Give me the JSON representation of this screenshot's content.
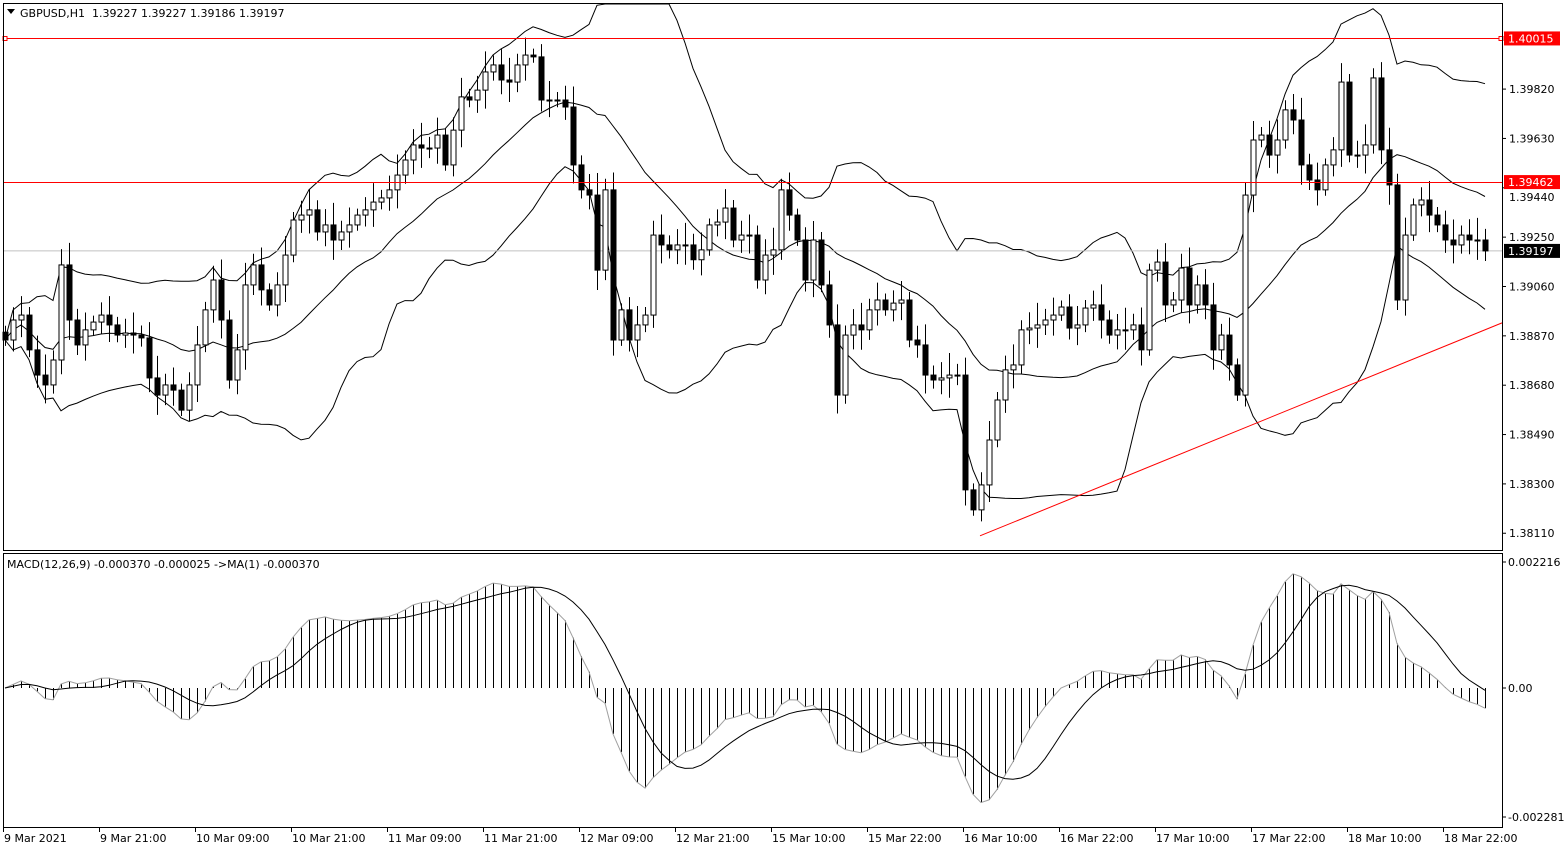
{
  "header": {
    "symbol": "GBPUSD,H1",
    "ohlc": "1.39227 1.39227 1.39186 1.39197",
    "menu_icon": "triangle-down-icon"
  },
  "macd_label": "MACD(12,26,9) -0.000370 -0.000025  ->MA(1) -0.000370",
  "colors": {
    "hline": "#ff0000",
    "trendline": "#ff0000",
    "bid_line": "#c0c0c0",
    "bull": "#ffffff",
    "bear": "#000000"
  },
  "chart_data": [
    {
      "type": "candlestick",
      "title": "GBPUSD,H1",
      "indicators": [
        {
          "name": "Bollinger Bands",
          "period": 20,
          "deviation": 2
        }
      ],
      "y_ticks": [
        "1.39820",
        "1.39630",
        "1.39440",
        "1.39250",
        "1.39060",
        "1.38870",
        "1.38680",
        "1.38490",
        "1.38300",
        "1.38110"
      ],
      "ylim": [
        1.38,
        1.4016
      ],
      "x_ticks": [
        "9 Mar 2021",
        "9 Mar 21:00",
        "10 Mar 09:00",
        "10 Mar 21:00",
        "11 Mar 09:00",
        "11 Mar 21:00",
        "12 Mar 09:00",
        "12 Mar 21:00",
        "15 Mar 10:00",
        "15 Mar 22:00",
        "16 Mar 10:00",
        "16 Mar 22:00",
        "17 Mar 10:00",
        "17 Mar 22:00",
        "18 Mar 10:00",
        "18 Mar 22:00"
      ],
      "horizontal_lines": [
        {
          "price": "1.40015"
        },
        {
          "price": "1.39462"
        }
      ],
      "current_price": "1.39197",
      "trendline": {
        "from": {
          "time": "16 Mar 12:00",
          "price": 1.381
        },
        "to": {
          "time": "19 Mar 02:00",
          "price": 1.3892
        }
      },
      "close": [
        1.38854,
        1.38931,
        1.3895,
        1.38816,
        1.38719,
        1.38681,
        1.38777,
        1.39143,
        1.38931,
        1.38835,
        1.38893,
        1.38923,
        1.3895,
        1.38912,
        1.38873,
        1.38881,
        1.38873,
        1.38862,
        1.38708,
        1.38642,
        1.38681,
        1.38661,
        1.38584,
        1.38681,
        1.38835,
        1.3897,
        1.39085,
        1.38931,
        1.387,
        1.38816,
        1.39066,
        1.39143,
        1.39047,
        1.38989,
        1.39066,
        1.39181,
        1.39316,
        1.39335,
        1.39355,
        1.3927,
        1.39297,
        1.39239,
        1.3927,
        1.39297,
        1.39335,
        1.39355,
        1.39385,
        1.39401,
        1.39432,
        1.39489,
        1.39547,
        1.39605,
        1.39593,
        1.39593,
        1.39643,
        1.39528,
        1.39662,
        1.3979,
        1.39778,
        1.39816,
        1.39886,
        1.39913,
        1.39855,
        1.39847,
        1.39913,
        1.39951,
        1.39944,
        1.39778,
        1.39778,
        1.39778,
        1.39751,
        1.39528,
        1.39432,
        1.39412,
        1.39123,
        1.39432,
        1.38854,
        1.3897,
        1.38854,
        1.38912,
        1.3895,
        1.39258,
        1.3922,
        1.39201,
        1.3922,
        1.3922,
        1.39163,
        1.39201,
        1.39297,
        1.39308,
        1.39362,
        1.39239,
        1.39258,
        1.39258,
        1.39085,
        1.39181,
        1.39201,
        1.39432,
        1.39335,
        1.39239,
        1.39085,
        1.39239,
        1.39066,
        1.38912,
        1.38642,
        1.38873,
        1.38912,
        1.38893,
        1.3897,
        1.39008,
        1.3897,
        1.38996,
        1.39008,
        1.38854,
        1.38835,
        1.38719,
        1.387,
        1.38708,
        1.38719,
        1.38719,
        1.38277,
        1.382,
        1.38296,
        1.38469,
        1.38623,
        1.38739,
        1.38758,
        1.38893,
        1.389,
        1.38912,
        1.38931,
        1.3895,
        1.38981,
        1.389,
        1.38912,
        1.38977,
        1.38989,
        1.38931,
        1.38873,
        1.38893,
        1.38893,
        1.38912,
        1.38816,
        1.39123,
        1.39154,
        1.38989,
        1.39008,
        1.39131,
        1.38989,
        1.39066,
        1.38989,
        1.38816,
        1.38873,
        1.38758,
        1.38642,
        1.39412,
        1.39624,
        1.39643,
        1.39566,
        1.39624,
        1.3974,
        1.39701,
        1.39528,
        1.3947,
        1.39432,
        1.39528,
        1.39586,
        1.39847,
        1.39566,
        1.39566,
        1.39605,
        1.39863,
        1.39586,
        1.39451,
        1.39008,
        1.39258,
        1.39374,
        1.39393,
        1.39335,
        1.39297,
        1.39239,
        1.3922,
        1.39258,
        1.39239,
        1.39239,
        1.39197
      ]
    },
    {
      "type": "bar+line",
      "title": "MACD(12,26,9)",
      "y_ticks": [
        "0.002216",
        "0.00",
        "-0.002281"
      ],
      "ylim": [
        -0.002281,
        0.002216
      ],
      "params": {
        "fast": 12,
        "slow": 26,
        "signal": 9
      },
      "values": {
        "macd": "-0.000370",
        "signal": "-0.000025"
      }
    }
  ]
}
